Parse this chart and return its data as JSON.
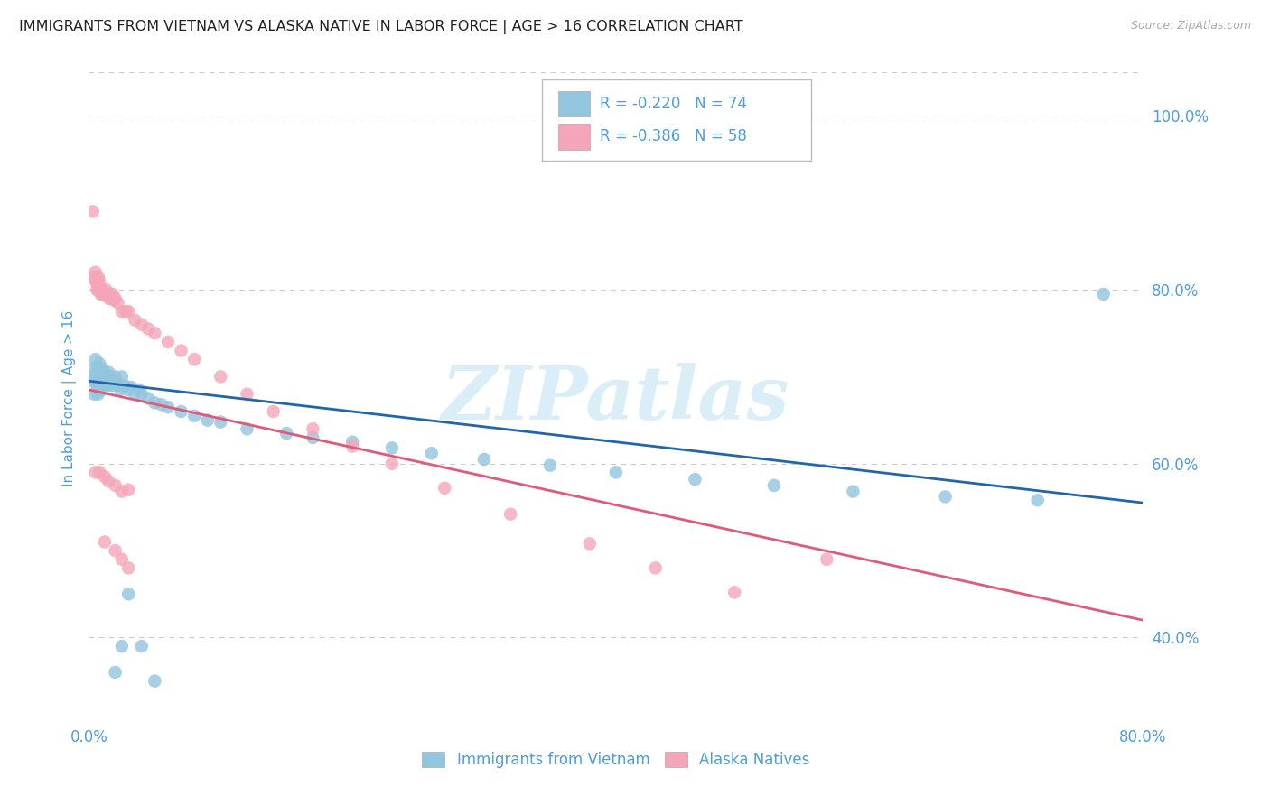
{
  "title": "IMMIGRANTS FROM VIETNAM VS ALASKA NATIVE IN LABOR FORCE | AGE > 16 CORRELATION CHART",
  "source_text": "Source: ZipAtlas.com",
  "ylabel": "In Labor Force | Age > 16",
  "xlim": [
    0.0,
    0.8
  ],
  "ylim": [
    0.3,
    1.05
  ],
  "y_ticks_right": [
    0.4,
    0.6,
    0.8,
    1.0
  ],
  "y_tick_labels_right": [
    "40.0%",
    "60.0%",
    "80.0%",
    "100.0%"
  ],
  "color_blue": "#92c5de",
  "color_pink": "#f4a6b8",
  "line_blue": "#2166ac",
  "line_pink": "#e05a78",
  "background_color": "#ffffff",
  "grid_color": "#cccccc",
  "axis_color": "#4d9de0",
  "watermark_text": "ZIPatlas",
  "watermark_color": "#daeef8",
  "blue_line_start_y": 0.695,
  "blue_line_end_y": 0.555,
  "pink_line_start_y": 0.685,
  "pink_line_end_y": 0.42,
  "scatter_blue_x": [
    0.002,
    0.003,
    0.004,
    0.004,
    0.005,
    0.005,
    0.006,
    0.006,
    0.006,
    0.007,
    0.007,
    0.007,
    0.008,
    0.008,
    0.008,
    0.009,
    0.009,
    0.01,
    0.01,
    0.01,
    0.01,
    0.011,
    0.011,
    0.012,
    0.012,
    0.013,
    0.013,
    0.014,
    0.015,
    0.015,
    0.016,
    0.017,
    0.018,
    0.019,
    0.02,
    0.02,
    0.022,
    0.024,
    0.025,
    0.027,
    0.03,
    0.032,
    0.035,
    0.038,
    0.04,
    0.045,
    0.05,
    0.055,
    0.06,
    0.07,
    0.08,
    0.09,
    0.1,
    0.12,
    0.15,
    0.17,
    0.2,
    0.23,
    0.26,
    0.3,
    0.35,
    0.4,
    0.46,
    0.52,
    0.58,
    0.65,
    0.72,
    0.77,
    0.02,
    0.025,
    0.03,
    0.04,
    0.05
  ],
  "scatter_blue_y": [
    0.7,
    0.695,
    0.71,
    0.68,
    0.72,
    0.695,
    0.7,
    0.705,
    0.69,
    0.71,
    0.695,
    0.68,
    0.7,
    0.715,
    0.69,
    0.705,
    0.695,
    0.7,
    0.695,
    0.71,
    0.685,
    0.7,
    0.695,
    0.705,
    0.69,
    0.7,
    0.695,
    0.7,
    0.705,
    0.69,
    0.7,
    0.695,
    0.69,
    0.695,
    0.7,
    0.695,
    0.69,
    0.685,
    0.7,
    0.69,
    0.685,
    0.688,
    0.68,
    0.685,
    0.68,
    0.675,
    0.67,
    0.668,
    0.665,
    0.66,
    0.655,
    0.65,
    0.648,
    0.64,
    0.635,
    0.63,
    0.625,
    0.618,
    0.612,
    0.605,
    0.598,
    0.59,
    0.582,
    0.575,
    0.568,
    0.562,
    0.558,
    0.795,
    0.36,
    0.39,
    0.45,
    0.39,
    0.35
  ],
  "scatter_pink_x": [
    0.003,
    0.004,
    0.005,
    0.005,
    0.006,
    0.006,
    0.007,
    0.007,
    0.008,
    0.008,
    0.009,
    0.009,
    0.01,
    0.01,
    0.011,
    0.012,
    0.013,
    0.014,
    0.015,
    0.016,
    0.017,
    0.018,
    0.019,
    0.02,
    0.022,
    0.025,
    0.028,
    0.03,
    0.035,
    0.04,
    0.045,
    0.05,
    0.06,
    0.07,
    0.08,
    0.1,
    0.12,
    0.14,
    0.17,
    0.2,
    0.23,
    0.27,
    0.32,
    0.38,
    0.43,
    0.49,
    0.56,
    0.005,
    0.008,
    0.012,
    0.015,
    0.02,
    0.025,
    0.03,
    0.012,
    0.02,
    0.025,
    0.03
  ],
  "scatter_pink_y": [
    0.89,
    0.815,
    0.82,
    0.81,
    0.808,
    0.8,
    0.815,
    0.8,
    0.8,
    0.81,
    0.795,
    0.8,
    0.795,
    0.8,
    0.795,
    0.795,
    0.8,
    0.795,
    0.79,
    0.795,
    0.79,
    0.795,
    0.788,
    0.79,
    0.785,
    0.775,
    0.775,
    0.775,
    0.765,
    0.76,
    0.755,
    0.75,
    0.74,
    0.73,
    0.72,
    0.7,
    0.68,
    0.66,
    0.64,
    0.62,
    0.6,
    0.572,
    0.542,
    0.508,
    0.48,
    0.452,
    0.49,
    0.59,
    0.59,
    0.585,
    0.58,
    0.575,
    0.568,
    0.57,
    0.51,
    0.5,
    0.49,
    0.48
  ]
}
